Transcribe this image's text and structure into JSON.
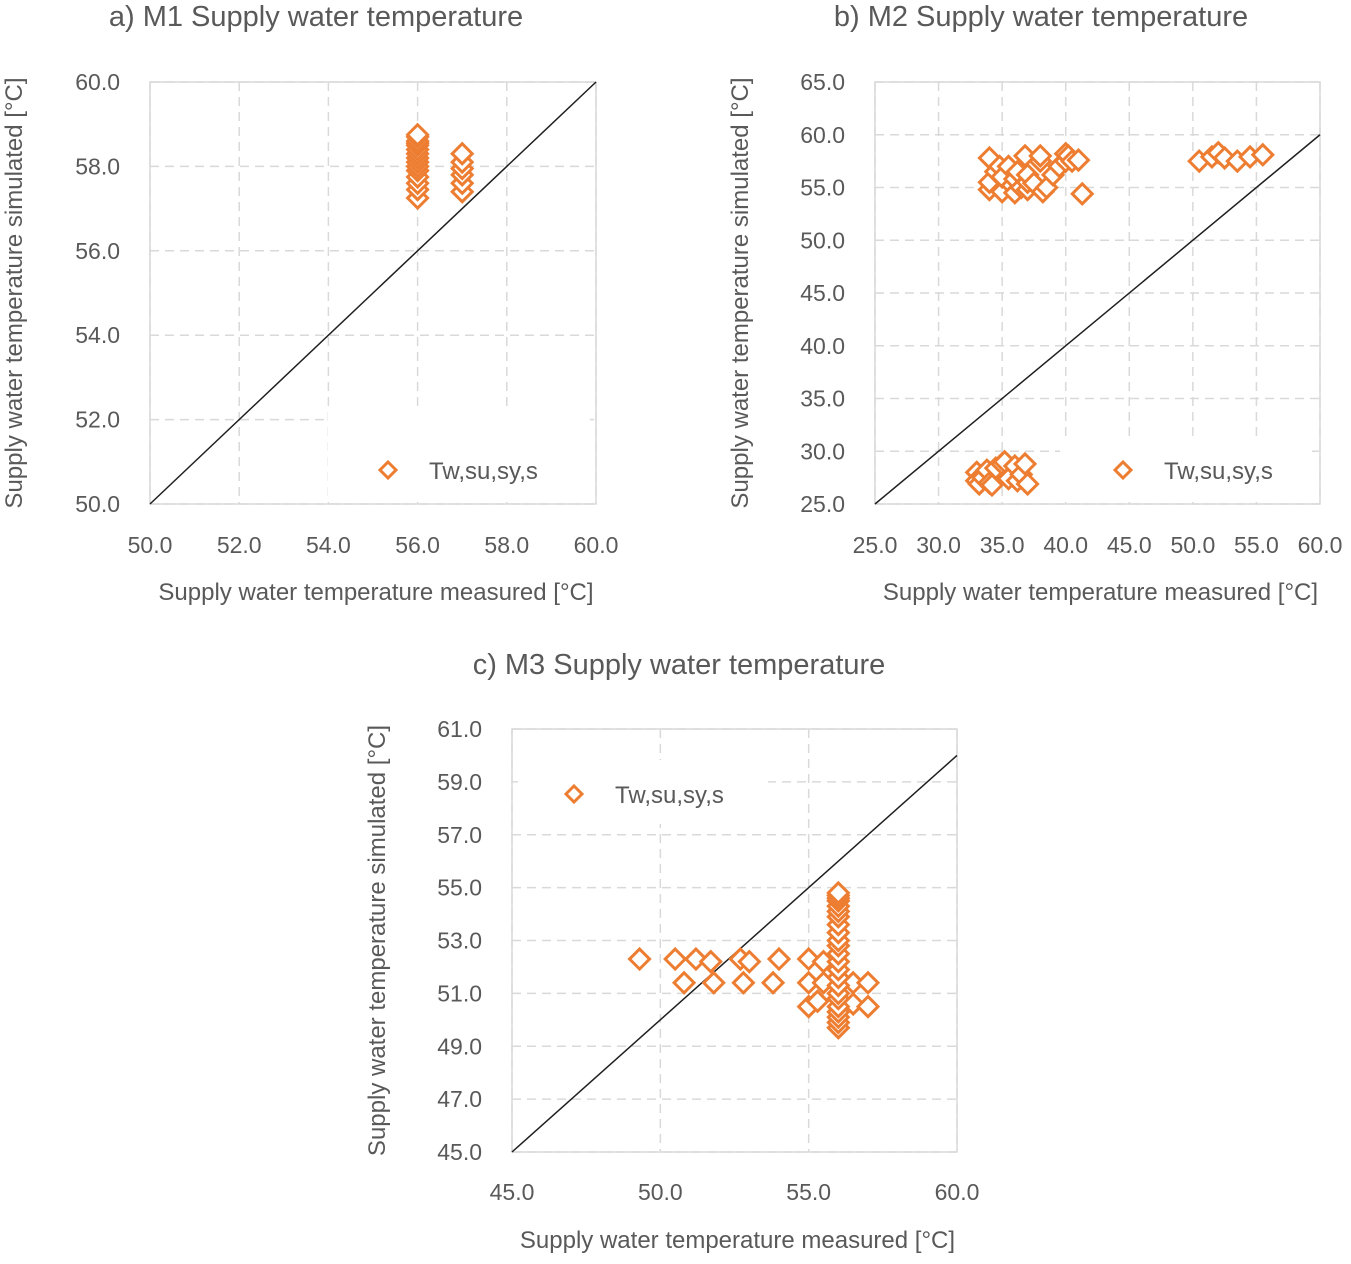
{
  "chart_data": [
    {
      "type": "scatter",
      "title": "a) M1 Supply water temperature",
      "xlabel": "Supply water temperature measured [°C]",
      "ylabel": "Supply water temperature simulated [°C]",
      "xlim": [
        50,
        60
      ],
      "ylim": [
        50,
        60
      ],
      "xticks": [
        "50.0",
        "52.0",
        "54.0",
        "56.0",
        "58.0",
        "60.0"
      ],
      "yticks": [
        "50.0",
        "52.0",
        "54.0",
        "56.0",
        "58.0",
        "60.0"
      ],
      "grid": true,
      "legend": "lower-right",
      "reference_line": {
        "name": "y = x",
        "color": "#1f1f1f"
      },
      "series": [
        {
          "name": "Tw,su,sy,s",
          "color": "#ed7d31",
          "marker": "diamond-open",
          "x": [
            56,
            56,
            56,
            56,
            56,
            56,
            56,
            56,
            56,
            56,
            56,
            56,
            56,
            56,
            56,
            57,
            57,
            57,
            57,
            57,
            57
          ],
          "y": [
            57.25,
            57.45,
            57.6,
            57.75,
            57.9,
            58.0,
            58.1,
            58.2,
            58.3,
            58.4,
            58.5,
            58.55,
            58.6,
            58.7,
            58.75,
            57.4,
            57.6,
            57.8,
            57.95,
            58.1,
            58.3
          ]
        }
      ]
    },
    {
      "type": "scatter",
      "title": "b) M2 Supply water temperature",
      "xlabel": "Supply water temperature measured [°C]",
      "ylabel": "Supply water temperature simulated [°C]",
      "xlim": [
        25,
        60
      ],
      "ylim": [
        25,
        65
      ],
      "xticks": [
        "25.0",
        "30.0",
        "35.0",
        "40.0",
        "45.0",
        "50.0",
        "55.0",
        "60.0"
      ],
      "yticks": [
        "25.0",
        "30.0",
        "35.0",
        "40.0",
        "45.0",
        "50.0",
        "55.0",
        "60.0",
        "65.0"
      ],
      "grid": true,
      "legend": "lower-right",
      "reference_line": {
        "name": "y = x",
        "color": "#1f1f1f"
      },
      "series": [
        {
          "name": "Tw,su,sy,s",
          "color": "#ed7d31",
          "marker": "diamond-open",
          "x": [
            34,
            34,
            34,
            34.5,
            34.8,
            35,
            35,
            35.5,
            35.8,
            36,
            36,
            36.2,
            36.5,
            36.8,
            37,
            37,
            37,
            37.5,
            38,
            38,
            38.2,
            38.5,
            39,
            39.5,
            40,
            40,
            40.2,
            40.5,
            41,
            41.3,
            33,
            33,
            33.2,
            33.5,
            33.8,
            34,
            34.2,
            34.5,
            35,
            35.2,
            35.5,
            36,
            36.2,
            36.5,
            36.8,
            37,
            50.5,
            51.5,
            52,
            52.5,
            53.5,
            54.5,
            55.5
          ],
          "y": [
            54.8,
            55.5,
            57.8,
            56.5,
            57,
            54.6,
            56,
            57,
            55.2,
            54.5,
            55.8,
            56.5,
            55,
            58,
            54.8,
            55.5,
            56.2,
            55.4,
            57.5,
            58,
            54.6,
            55,
            56.2,
            57,
            57.5,
            58.2,
            58,
            57.5,
            57.6,
            54.4,
            28,
            27.2,
            26.9,
            27.5,
            28.2,
            27,
            26.8,
            28.4,
            28.8,
            29,
            27.4,
            28.6,
            27.2,
            27.8,
            28.8,
            26.9,
            57.5,
            57.9,
            58.3,
            57.8,
            57.5,
            57.9,
            58.1
          ]
        }
      ]
    },
    {
      "type": "scatter",
      "title": "c) M3 Supply water temperature",
      "xlabel": "Supply water temperature measured [°C]",
      "ylabel": "Supply water temperature simulated [°C]",
      "xlim": [
        45,
        60
      ],
      "ylim": [
        45,
        61
      ],
      "xticks": [
        "45.0",
        "50.0",
        "55.0",
        "60.0"
      ],
      "yticks": [
        "45.0",
        "47.0",
        "49.0",
        "51.0",
        "53.0",
        "55.0",
        "57.0",
        "59.0",
        "61.0"
      ],
      "grid": true,
      "legend": "top-left",
      "reference_line": {
        "name": "y = x",
        "color": "#1f1f1f"
      },
      "series": [
        {
          "name": "Tw,su,sy,s",
          "color": "#ed7d31",
          "marker": "diamond-open",
          "x": [
            49.3,
            50.5,
            51.2,
            51.7,
            52.7,
            53,
            54,
            55,
            55.5,
            50.8,
            51.8,
            52.8,
            53.8,
            55,
            55.5,
            56.5,
            57,
            55,
            55.3,
            56.5,
            57,
            56,
            56,
            56,
            56,
            56,
            56,
            56,
            56,
            56,
            56,
            56,
            56,
            56,
            56,
            56,
            56,
            56,
            56,
            56,
            56,
            56,
            56,
            56
          ],
          "y": [
            52.3,
            52.3,
            52.3,
            52.2,
            52.3,
            52.2,
            52.3,
            52.3,
            52.2,
            51.4,
            51.4,
            51.4,
            51.4,
            51.4,
            51.4,
            51.4,
            51.4,
            50.5,
            50.7,
            50.6,
            50.5,
            49.7,
            49.9,
            50.1,
            50.3,
            50.5,
            50.8,
            51.0,
            51.3,
            51.6,
            51.9,
            52.2,
            52.5,
            52.8,
            53.0,
            53.3,
            53.6,
            53.9,
            54.1,
            54.3,
            54.5,
            54.6,
            54.7,
            54.8
          ]
        }
      ]
    }
  ]
}
